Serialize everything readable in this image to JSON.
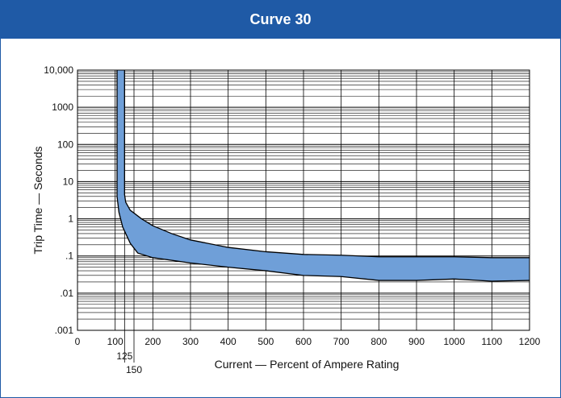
{
  "chart_data": {
    "type": "area",
    "title": "Curve 30",
    "xlabel": "Current — Percent of Ampere Rating",
    "ylabel": "Trip Time — Seconds",
    "xlim": [
      0,
      1200
    ],
    "ylim": [
      0.001,
      10000
    ],
    "y_scale": "log",
    "grid": true,
    "x_ticks": [
      "0",
      "100",
      "200",
      "300",
      "400",
      "500",
      "600",
      "700",
      "800",
      "900",
      "1000",
      "1100",
      "1200"
    ],
    "x_extra_ticks": [
      {
        "value": 125,
        "label": "125"
      },
      {
        "value": 150,
        "label": "150"
      }
    ],
    "y_ticks": [
      {
        "value": 10000,
        "label": "10,000"
      },
      {
        "value": 1000,
        "label": "1000"
      },
      {
        "value": 100,
        "label": "100"
      },
      {
        "value": 10,
        "label": "10"
      },
      {
        "value": 1,
        "label": "1"
      },
      {
        "value": 0.1,
        "label": ".1"
      },
      {
        "value": 0.01,
        "label": ".01"
      },
      {
        "value": 0.001,
        "label": ".001"
      }
    ],
    "series": [
      {
        "x": [
          125,
          125,
          128,
          140,
          170,
          200,
          250,
          300,
          400,
          500,
          600,
          700,
          800,
          900,
          1000,
          1100,
          1200
        ],
        "y": [
          10000,
          4.5,
          2.8,
          1.7,
          1.0,
          0.65,
          0.4,
          0.27,
          0.17,
          0.13,
          0.11,
          0.105,
          0.095,
          0.095,
          0.095,
          0.09,
          0.09
        ]
      },
      {
        "x": [
          105,
          105,
          110,
          120,
          140,
          160,
          200,
          300,
          400,
          500,
          600,
          700,
          800,
          900,
          1000,
          1100,
          1200
        ],
        "y": [
          10000,
          4.0,
          1.5,
          0.6,
          0.22,
          0.12,
          0.09,
          0.065,
          0.05,
          0.04,
          0.03,
          0.028,
          0.022,
          0.022,
          0.024,
          0.021,
          0.022
        ]
      }
    ],
    "colors": {
      "band": "#6f9fd8",
      "band_edge": "#000000",
      "grid": "#000000",
      "header": "#1f5aa6"
    }
  }
}
